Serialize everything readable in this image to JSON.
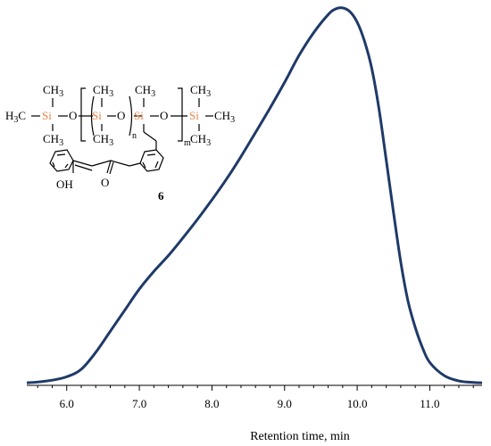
{
  "chart_data": {
    "type": "line",
    "title": "",
    "xlabel": "Retention time, min",
    "ylabel": "",
    "xlim": [
      5.45,
      11.72
    ],
    "ylim": [
      0,
      100
    ],
    "x_ticks": [
      "6.0",
      "7.0",
      "8.0",
      "9.0",
      "10.0",
      "11.0"
    ],
    "grid": false,
    "series": [
      {
        "color": "#1f3a68",
        "x": [
          5.45,
          5.6,
          5.8,
          6.0,
          6.2,
          6.4,
          6.6,
          6.8,
          7.0,
          7.2,
          7.4,
          7.6,
          7.8,
          8.0,
          8.2,
          8.4,
          8.6,
          8.8,
          9.0,
          9.2,
          9.4,
          9.6,
          9.7,
          9.8,
          9.9,
          10.0,
          10.1,
          10.2,
          10.3,
          10.4,
          10.5,
          10.6,
          10.7,
          10.8,
          10.9,
          11.0,
          11.2,
          11.4,
          11.6,
          11.72
        ],
        "y": [
          0.2,
          0.4,
          0.9,
          1.8,
          3.8,
          8.3,
          13.9,
          19.5,
          25.1,
          29.8,
          34.0,
          38.7,
          43.6,
          48.8,
          54.3,
          60.3,
          66.7,
          73.2,
          80.0,
          87.2,
          93.2,
          98.0,
          99.5,
          99.8,
          98.8,
          96.0,
          91.0,
          83.8,
          73.0,
          59.4,
          45.5,
          32.3,
          21.9,
          14.9,
          9.5,
          5.6,
          2.1,
          0.7,
          0.3,
          0.2
        ]
      }
    ]
  },
  "structure": {
    "h3c": "H",
    "h3c_sub": "3",
    "h3c_c": "C",
    "si": "Si",
    "o": "O",
    "ch3": "CH",
    "ch3_sub": "3",
    "n": "n",
    "m": "m",
    "oh": "OH",
    "keto_o": "O",
    "compound_number": "6"
  }
}
